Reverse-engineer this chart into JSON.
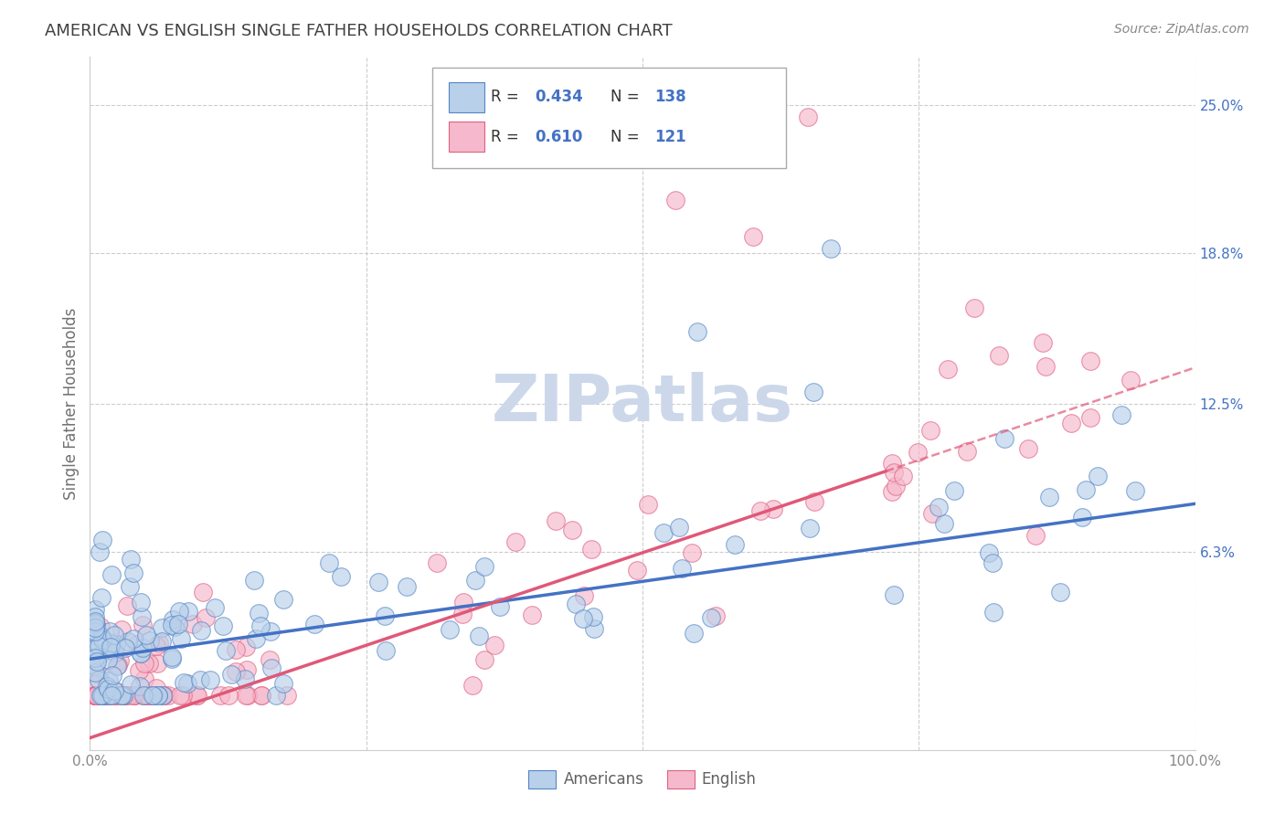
{
  "title": "AMERICAN VS ENGLISH SINGLE FATHER HOUSEHOLDS CORRELATION CHART",
  "source": "Source: ZipAtlas.com",
  "ylabel": "Single Father Households",
  "ytick_values": [
    6.3,
    12.5,
    18.8,
    25.0
  ],
  "ytick_labels": [
    "6.3%",
    "12.5%",
    "18.8%",
    "25.0%"
  ],
  "xtick_values": [
    0,
    25,
    50,
    75,
    100
  ],
  "xtick_labels": [
    "0.0%",
    "",
    "",
    "",
    "100.0%"
  ],
  "xmin": 0,
  "xmax": 100,
  "ymin": -2.0,
  "ymax": 27.0,
  "legend_r_american": "0.434",
  "legend_n_american": "138",
  "legend_r_english": "0.610",
  "legend_n_english": "121",
  "legend_label_american": "Americans",
  "legend_label_english": "English",
  "color_american_fill": "#b8d0ea",
  "color_english_fill": "#f5b8cc",
  "color_american_edge": "#5585c5",
  "color_english_edge": "#e06080",
  "color_american_line": "#4472c4",
  "color_english_line": "#e05878",
  "title_color": "#404040",
  "source_color": "#888888",
  "tick_color_right": "#4472c4",
  "ylabel_color": "#707070",
  "background_color": "#ffffff",
  "grid_color": "#cccccc",
  "watermark_color": "#ccd8ea",
  "am_line_intercept": 1.8,
  "am_line_slope": 0.065,
  "en_line_intercept": -1.5,
  "en_line_slope": 0.155
}
